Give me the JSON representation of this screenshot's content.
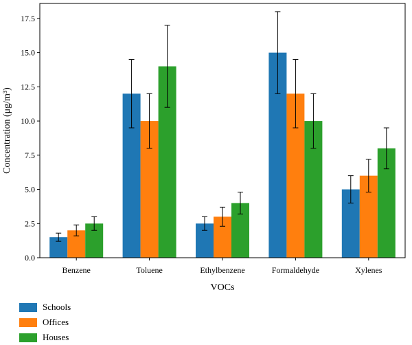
{
  "chart_data": {
    "type": "bar",
    "categories": [
      "Benzene",
      "Toluene",
      "Ethylbenzene",
      "Formaldehyde",
      "Xylenes"
    ],
    "series": [
      {
        "name": "Schools",
        "color": "#1f77b4",
        "values": [
          1.5,
          12.0,
          2.5,
          15.0,
          5.0
        ],
        "errors": [
          0.3,
          2.5,
          0.5,
          3.0,
          1.0
        ]
      },
      {
        "name": "Offices",
        "color": "#ff7f0e",
        "values": [
          2.0,
          10.0,
          3.0,
          12.0,
          6.0
        ],
        "errors": [
          0.4,
          2.0,
          0.7,
          2.5,
          1.2
        ]
      },
      {
        "name": "Houses",
        "color": "#2ca02c",
        "values": [
          2.5,
          14.0,
          4.0,
          10.0,
          8.0
        ],
        "errors": [
          0.5,
          3.0,
          0.8,
          2.0,
          1.5
        ]
      }
    ],
    "xlabel": "VOCs",
    "ylabel": "Concentration (μg/m³)",
    "ylim": [
      0,
      18.6
    ],
    "yticks": [
      0.0,
      2.5,
      5.0,
      7.5,
      10.0,
      12.5,
      15.0,
      17.5
    ],
    "ytick_labels": [
      "0.0",
      "2.5",
      "5.0",
      "7.5",
      "10.0",
      "12.5",
      "15.0",
      "17.5"
    ],
    "grid": false,
    "legend_position": "bottom-left"
  }
}
